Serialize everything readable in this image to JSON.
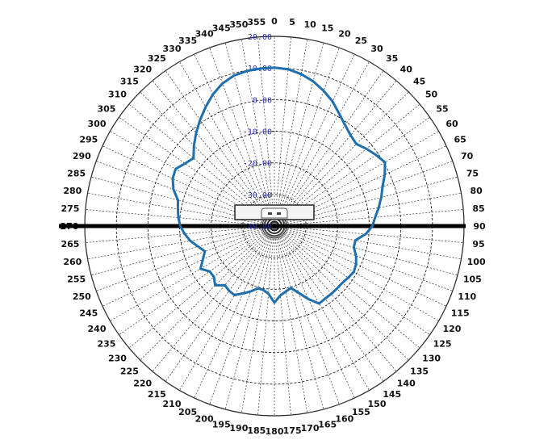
{
  "chart_data": {
    "type": "polar-line",
    "title": "",
    "radial_axis": {
      "min": -40,
      "max": 20,
      "step": 10,
      "tick_labels": [
        "-40.00",
        "-30.00",
        "-20.00",
        "-10.00",
        "0.00",
        "10.00",
        "20.00"
      ],
      "label_color": "#2a2ab0"
    },
    "angular_axis": {
      "step": 5,
      "direction": "clockwise",
      "zero": "top",
      "tick_labels": [
        "0",
        "5",
        "10",
        "15",
        "20",
        "25",
        "30",
        "35",
        "40",
        "45",
        "50",
        "55",
        "60",
        "65",
        "70",
        "75",
        "80",
        "85",
        "90",
        "95",
        "100",
        "105",
        "110",
        "115",
        "120",
        "125",
        "130",
        "135",
        "140",
        "145",
        "150",
        "155",
        "160",
        "165",
        "170",
        "175",
        "180",
        "185",
        "190",
        "195",
        "200",
        "205",
        "210",
        "215",
        "220",
        "225",
        "230",
        "235",
        "240",
        "245",
        "250",
        "255",
        "260",
        "265",
        "270",
        "275",
        "280",
        "285",
        "290",
        "295",
        "300",
        "305",
        "310",
        "315",
        "320",
        "325",
        "330",
        "335",
        "340",
        "345",
        "350",
        "355"
      ]
    },
    "grid": true,
    "series": [
      {
        "color": "#1f6fae",
        "angles": [
          0,
          5,
          10,
          15,
          20,
          25,
          30,
          35,
          40,
          45,
          50,
          55,
          60,
          65,
          70,
          75,
          80,
          85,
          90,
          95,
          100,
          105,
          110,
          115,
          120,
          125,
          130,
          135,
          140,
          145,
          150,
          155,
          160,
          165,
          170,
          175,
          180,
          185,
          190,
          195,
          200,
          205,
          210,
          215,
          220,
          225,
          230,
          235,
          240,
          245,
          250,
          255,
          260,
          265,
          270,
          275,
          280,
          285,
          290,
          295,
          300,
          305,
          310,
          315,
          320,
          325,
          330,
          335,
          340,
          345,
          350,
          355
        ],
        "values": [
          10.1,
          9.8,
          8.8,
          7.4,
          5.5,
          3.5,
          1.0,
          -1.0,
          -2.5,
          -3.3,
          -2.0,
          -0.8,
          0.4,
          -1.5,
          -3.6,
          -5.0,
          -6.5,
          -8.0,
          -9.0,
          -11.0,
          -14.0,
          -14.0,
          -12.5,
          -11.5,
          -11.0,
          -11.5,
          -12.0,
          -12.0,
          -12.0,
          -12.0,
          -11.7,
          -14.5,
          -17.5,
          -19.7,
          -19.0,
          -18.0,
          -15.8,
          -18.5,
          -19.5,
          -19.6,
          -18.0,
          -16.5,
          -14.8,
          -15.0,
          -15.6,
          -13.5,
          -15.0,
          -15.0,
          -13.0,
          -15.0,
          -16.6,
          -15.0,
          -13.0,
          -11.5,
          -10.2,
          -9.5,
          -9.0,
          -8.4,
          -6.0,
          -4.5,
          -3.9,
          -5.5,
          -6.6,
          -4.0,
          -1.5,
          1.0,
          3.5,
          6.0,
          8.0,
          9.3,
          9.8,
          10.0
        ]
      }
    ]
  }
}
